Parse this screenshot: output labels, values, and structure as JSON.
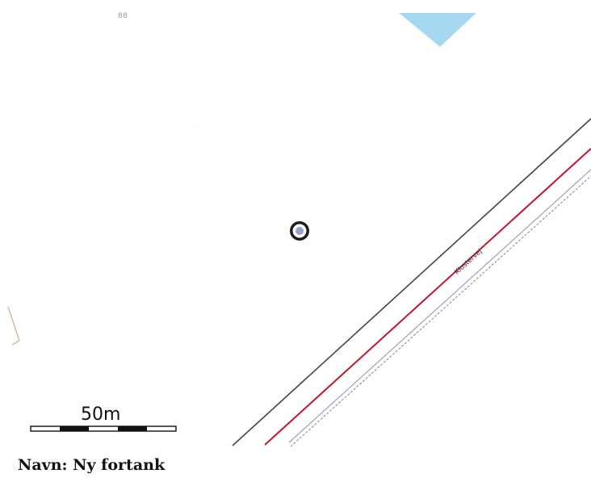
{
  "map": {
    "parcel_number": "88",
    "road_name": "Klostervej",
    "scale_bar_label": "50m",
    "feature_label": "Navn: Ny fortank",
    "marker_icon": "tank-location-marker",
    "colors": {
      "water": "#a6d8f2",
      "road_center": "#c0152f",
      "road_edge": "#444444",
      "road_side": "#8a93b8",
      "marker_outer": "#1c1c1c",
      "marker_inner": "#9aa2d0"
    }
  }
}
